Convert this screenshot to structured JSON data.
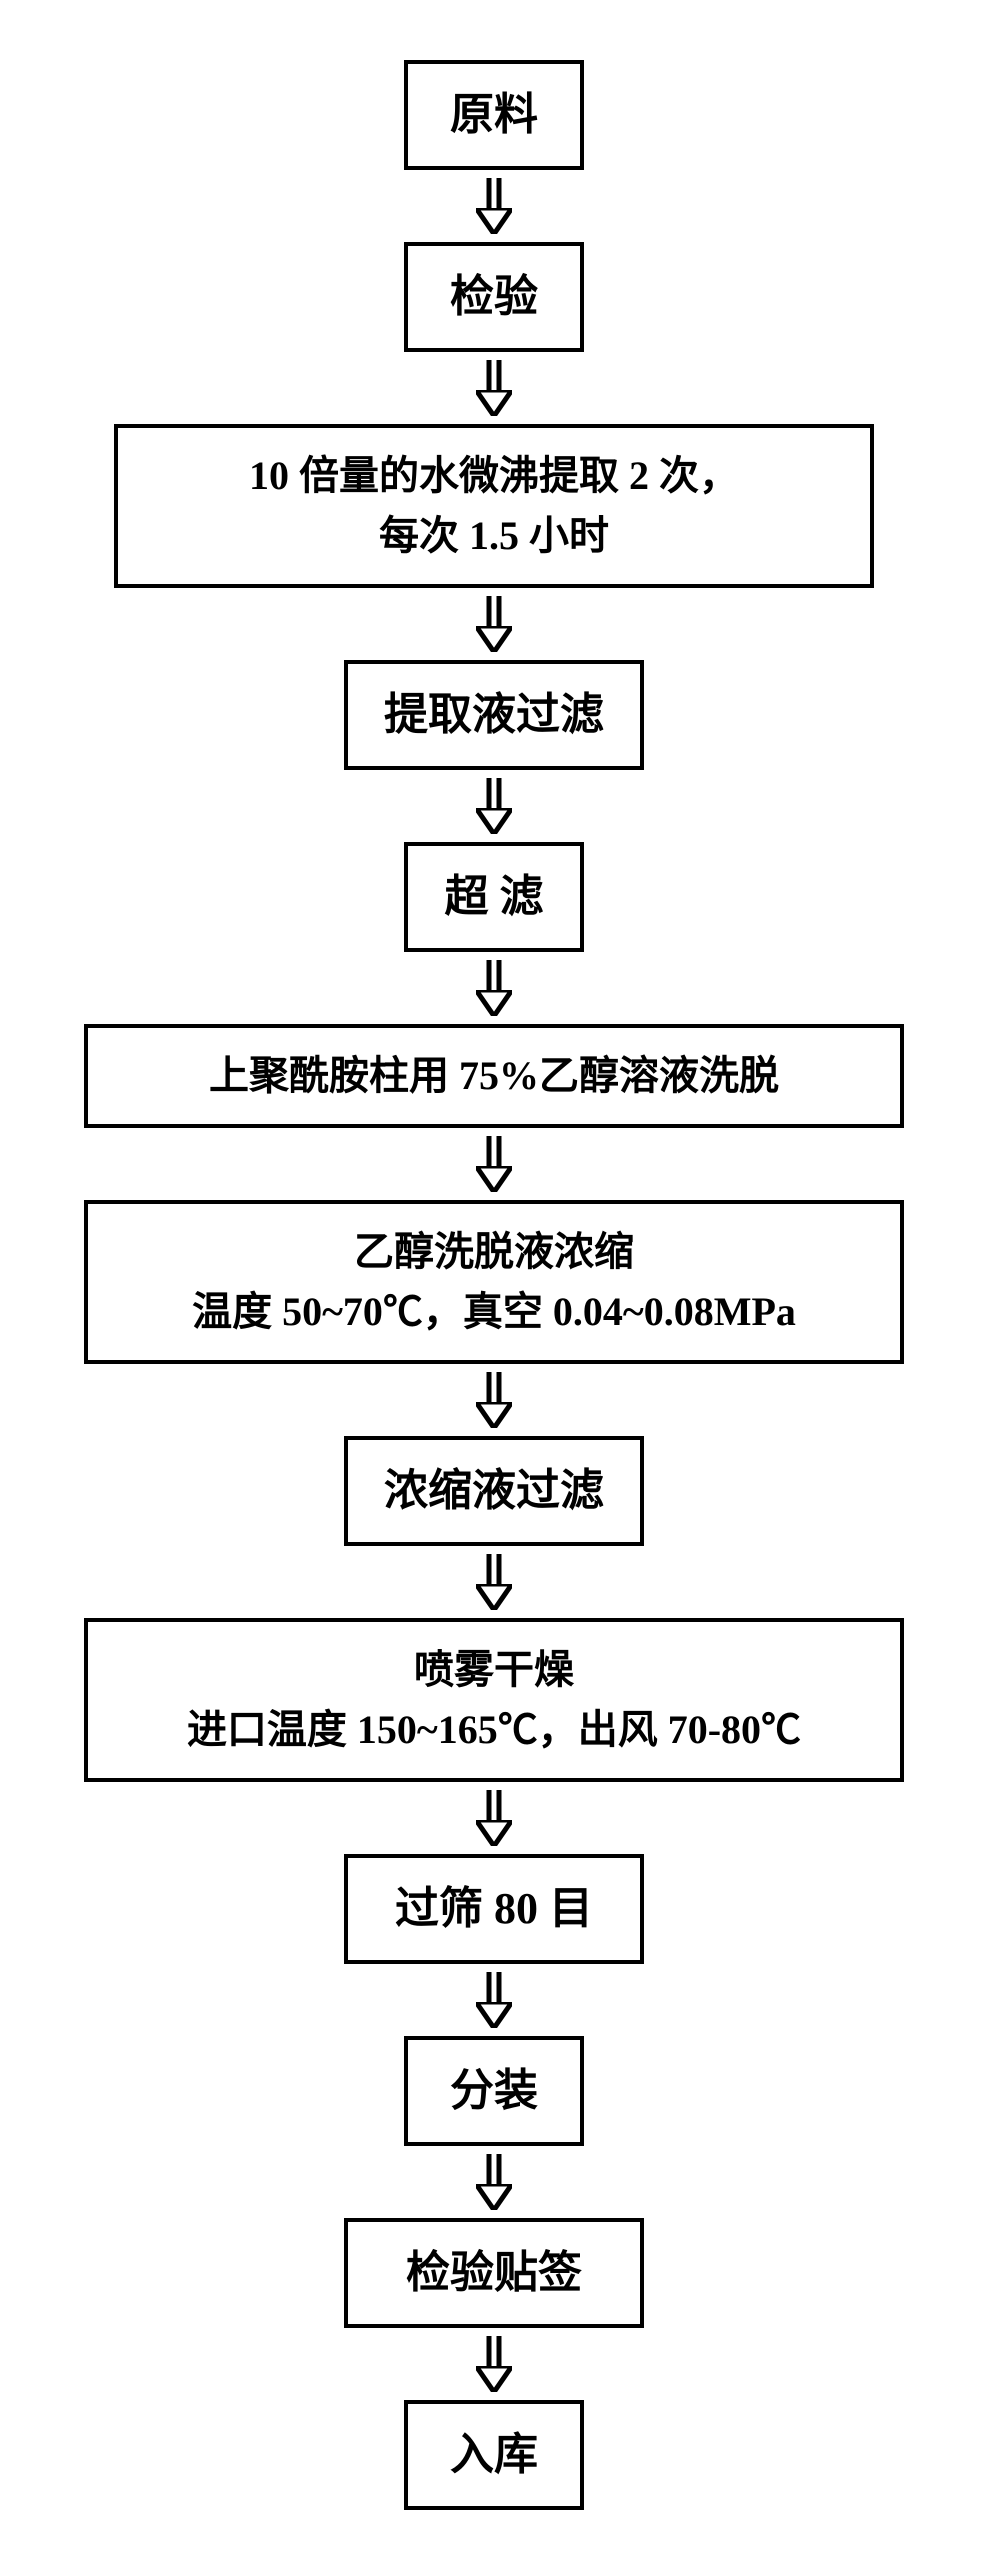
{
  "flowchart": {
    "type": "flowchart",
    "background_color": "#ffffff",
    "box_border_color": "#000000",
    "box_border_width": 4,
    "text_color": "#000000",
    "font_family": "SimSun",
    "font_weight": "bold",
    "arrow_color": "#000000",
    "arrow_stroke_width": 5,
    "arrow_style": "hollow-triangle",
    "nodes": [
      {
        "id": "n1",
        "label": "原料",
        "width": "small",
        "fontsize": 44
      },
      {
        "id": "n2",
        "label": "检验",
        "width": "small",
        "fontsize": 44
      },
      {
        "id": "n3",
        "label": "10 倍量的水微沸提取 2 次，\n每次 1.5 小时",
        "width": "wide",
        "fontsize": 40
      },
      {
        "id": "n4",
        "label": "提取液过滤",
        "width": "med",
        "fontsize": 44
      },
      {
        "id": "n5",
        "label": "超  滤",
        "width": "small",
        "fontsize": 44
      },
      {
        "id": "n6",
        "label": "上聚酰胺柱用 75%乙醇溶液洗脱",
        "width": "wider",
        "fontsize": 40
      },
      {
        "id": "n7",
        "label": "乙醇洗脱液浓缩\n温度 50~70℃，真空 0.04~0.08MPa",
        "width": "wider",
        "fontsize": 40
      },
      {
        "id": "n8",
        "label": "浓缩液过滤",
        "width": "med",
        "fontsize": 44
      },
      {
        "id": "n9",
        "label": "喷雾干燥\n进口温度 150~165℃，出风 70-80℃",
        "width": "wider",
        "fontsize": 40
      },
      {
        "id": "n10",
        "label": "过筛 80 目",
        "width": "med",
        "fontsize": 44
      },
      {
        "id": "n11",
        "label": "分装",
        "width": "small",
        "fontsize": 44
      },
      {
        "id": "n12",
        "label": "检验贴签",
        "width": "med",
        "fontsize": 44
      },
      {
        "id": "n13",
        "label": "入库",
        "width": "small",
        "fontsize": 44
      }
    ],
    "edges": [
      {
        "from": "n1",
        "to": "n2"
      },
      {
        "from": "n2",
        "to": "n3"
      },
      {
        "from": "n3",
        "to": "n4"
      },
      {
        "from": "n4",
        "to": "n5"
      },
      {
        "from": "n5",
        "to": "n6"
      },
      {
        "from": "n6",
        "to": "n7"
      },
      {
        "from": "n7",
        "to": "n8"
      },
      {
        "from": "n8",
        "to": "n9"
      },
      {
        "from": "n9",
        "to": "n10"
      },
      {
        "from": "n10",
        "to": "n11"
      },
      {
        "from": "n11",
        "to": "n12"
      },
      {
        "from": "n12",
        "to": "n13"
      }
    ],
    "arrow_stem_height": 30,
    "arrow_head_width": 36,
    "arrow_head_height": 26
  }
}
